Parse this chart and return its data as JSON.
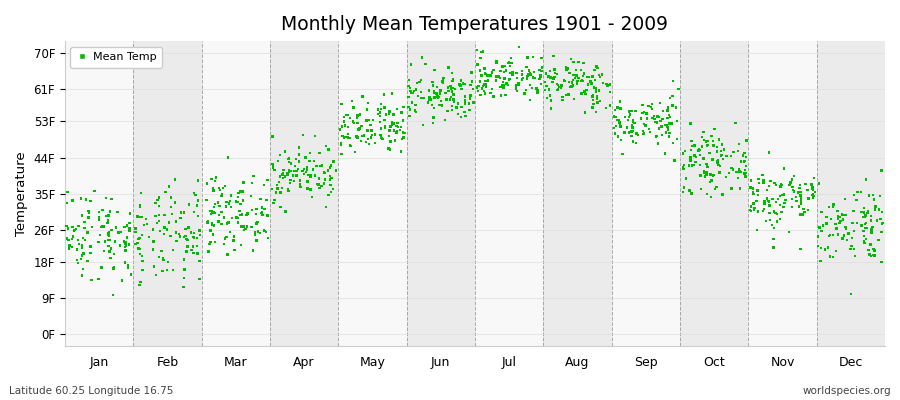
{
  "title": "Monthly Mean Temperatures 1901 - 2009",
  "ylabel": "Temperature",
  "bottom_left": "Latitude 60.25 Longitude 16.75",
  "bottom_right": "worldspecies.org",
  "months": [
    "Jan",
    "Feb",
    "Mar",
    "Apr",
    "May",
    "Jun",
    "Jul",
    "Aug",
    "Sep",
    "Oct",
    "Nov",
    "Dec"
  ],
  "n_years": 109,
  "yticks": [
    0,
    9,
    18,
    26,
    35,
    44,
    53,
    61,
    70
  ],
  "ytick_labels": [
    "0F",
    "9F",
    "18F",
    "26F",
    "35F",
    "44F",
    "53F",
    "61F",
    "70F"
  ],
  "ylim": [
    -3,
    73
  ],
  "dot_color": "#00bb00",
  "dot_size": 3,
  "bg_color": "#ffffff",
  "band_color_odd": "#ebebeb",
  "band_color_even": "#f8f8f8",
  "dashed_line_color": "#888888",
  "legend_label": "Mean Temp",
  "mean_temps_C": [
    -4.0,
    -4.5,
    -1.0,
    4.5,
    10.5,
    15.2,
    17.8,
    16.8,
    11.5,
    6.0,
    1.0,
    -2.5
  ],
  "std_temps_C": [
    3.2,
    3.4,
    2.5,
    2.0,
    2.0,
    1.8,
    1.6,
    1.7,
    1.8,
    2.0,
    2.3,
    2.8
  ],
  "seed": 42
}
